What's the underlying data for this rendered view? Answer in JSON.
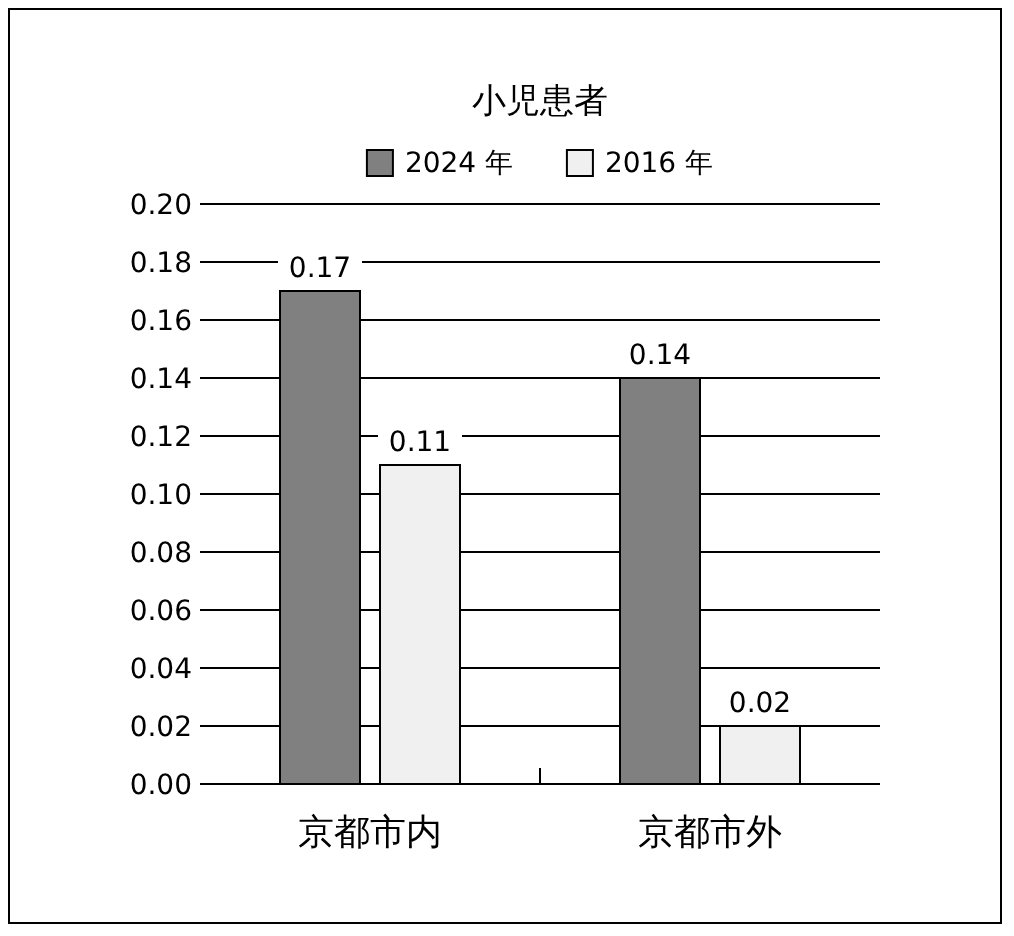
{
  "chart_data": {
    "type": "bar",
    "title": "小児患者",
    "categories": [
      "京都市内",
      "京都市外"
    ],
    "series": [
      {
        "name": "2024 年",
        "color": "#808080",
        "values": [
          0.17,
          0.14
        ]
      },
      {
        "name": "2016 年",
        "color": "#f0f0f0",
        "values": [
          0.11,
          0.02
        ]
      }
    ],
    "ylim": [
      0,
      0.2
    ],
    "yticks": [
      "0.00",
      "0.02",
      "0.04",
      "0.06",
      "0.08",
      "0.10",
      "0.12",
      "0.14",
      "0.16",
      "0.18",
      "0.20"
    ],
    "grid": "y",
    "legend": "top",
    "data_labels": true
  }
}
